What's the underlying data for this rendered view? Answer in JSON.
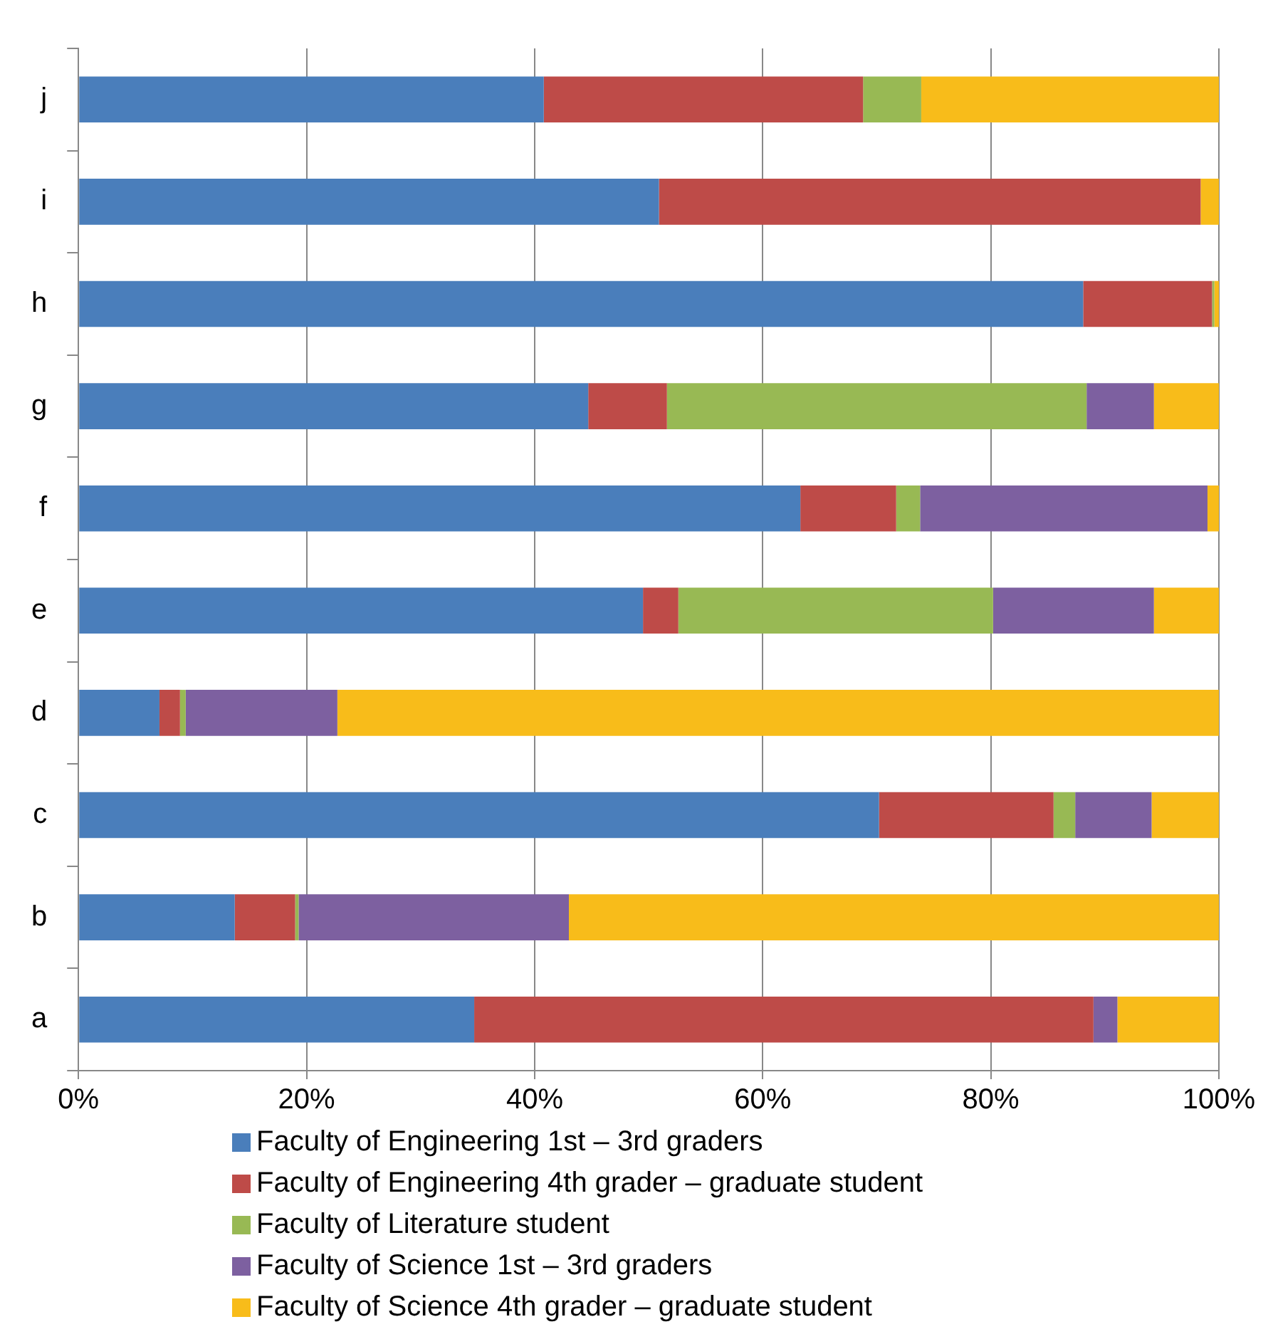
{
  "chart_data": {
    "type": "bar",
    "orientation": "horizontal",
    "stacked": true,
    "categories": [
      "j",
      "i",
      "h",
      "g",
      "f",
      "e",
      "d",
      "c",
      "b",
      "a"
    ],
    "series": [
      {
        "name": "Faculty of Engineering 1st – 3rd graders",
        "color": "#4a7ebb",
        "values": [
          40.8,
          50.9,
          88.1,
          44.7,
          63.3,
          49.5,
          7.1,
          70.2,
          13.7,
          34.7
        ]
      },
      {
        "name": "Faculty of Engineering 4th grader – graduate student",
        "color": "#be4b48",
        "values": [
          28.0,
          47.5,
          11.3,
          6.9,
          8.4,
          3.1,
          1.8,
          15.3,
          5.3,
          54.3
        ]
      },
      {
        "name": "Faculty of Literature  student",
        "color": "#98b954",
        "values": [
          5.1,
          0,
          0.2,
          36.8,
          2.1,
          27.6,
          0.5,
          1.9,
          0.3,
          0
        ]
      },
      {
        "name": "Faculty of Science 1st – 3rd graders",
        "color": "#7d60a0",
        "values": [
          0,
          0,
          0,
          5.9,
          25.2,
          14.1,
          13.3,
          6.7,
          23.7,
          2.1
        ]
      },
      {
        "name": "Faculty of Science 4th grader – graduate student",
        "color": "#f8bc1a",
        "values": [
          26.1,
          1.6,
          0.4,
          5.7,
          1.0,
          5.7,
          77.3,
          5.9,
          57.0,
          8.9
        ]
      }
    ],
    "xlim": [
      0,
      100
    ],
    "xticks": [
      {
        "value": 0,
        "label": "0%"
      },
      {
        "value": 20,
        "label": "20%"
      },
      {
        "value": 40,
        "label": "40%"
      },
      {
        "value": 60,
        "label": "60%"
      },
      {
        "value": 80,
        "label": "80%"
      },
      {
        "value": 100,
        "label": "100%"
      }
    ],
    "grid": "x",
    "legend": "bottom"
  }
}
